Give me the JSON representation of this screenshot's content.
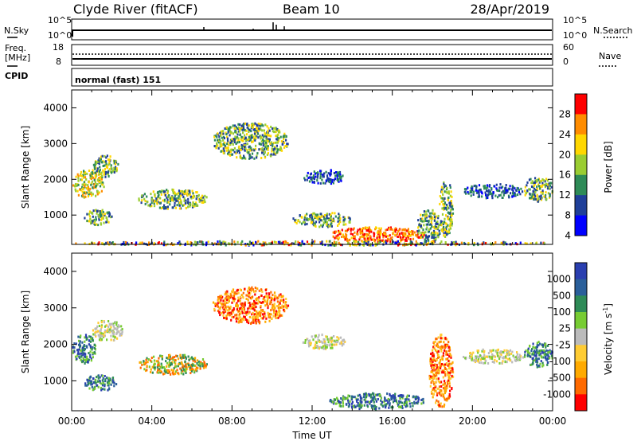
{
  "header": {
    "station": "Clyde River (fitACF)",
    "beam": "Beam 10",
    "date": "28/Apr/2019"
  },
  "strips": {
    "nsky_label": "N.Sky",
    "nsky_ticks": [
      "10^5",
      "10^0"
    ],
    "nsearch_label": "N.Search",
    "nsearch_ticks": [
      "10^5",
      "10^0"
    ],
    "freq_label_1": "Freq.",
    "freq_label_2": "[MHz]",
    "freq_ticks": [
      "18",
      "8"
    ],
    "nave_label": "Nave",
    "nave_ticks": [
      "60",
      "0"
    ],
    "cpid_label": "CPID",
    "cpid_text": "normal (fast) 151"
  },
  "chart_data": [
    {
      "type": "heatmap",
      "name": "power",
      "ylabel": "Slant Range [km]",
      "ylim": [
        180,
        4500
      ],
      "yticks": [
        "4000",
        "3000",
        "2000",
        "1000"
      ],
      "xlim": [
        "00:00",
        "24:00"
      ],
      "colorbar": {
        "label": "Power [dB]",
        "ticks": [
          "28",
          "24",
          "20",
          "16",
          "12",
          "8",
          "4"
        ],
        "colors": [
          "#ff0000",
          "#ff8c00",
          "#ffd700",
          "#9acd32",
          "#2e8b57",
          "#1f3f99",
          "#0000ff"
        ]
      },
      "features": [
        {
          "t0": 0.0,
          "t1": 1.6,
          "r0": 1500,
          "r1": 2300,
          "level": "12-24 dB"
        },
        {
          "t0": 0.6,
          "t1": 2.0,
          "r0": 750,
          "r1": 1200,
          "level": "12-20 dB"
        },
        {
          "t0": 1.0,
          "t1": 2.3,
          "r0": 2100,
          "r1": 2700,
          "level": "8-16 dB"
        },
        {
          "t0": 3.3,
          "t1": 6.8,
          "r0": 1200,
          "r1": 1750,
          "level": "12-20 dB"
        },
        {
          "t0": 7.0,
          "t1": 10.8,
          "r0": 2600,
          "r1": 3600,
          "level": "8-16 dB"
        },
        {
          "t0": 11.5,
          "t1": 13.6,
          "r0": 1900,
          "r1": 2300,
          "level": "4-12 dB"
        },
        {
          "t0": 11.0,
          "t1": 14.0,
          "r0": 700,
          "r1": 1100,
          "level": "8-16 dB"
        },
        {
          "t0": 12.8,
          "t1": 17.6,
          "r0": 250,
          "r1": 700,
          "level": "20-28 dB"
        },
        {
          "t0": 17.2,
          "t1": 18.4,
          "r0": 250,
          "r1": 1200,
          "level": "8-20 dB"
        },
        {
          "t0": 18.3,
          "t1": 19.0,
          "r0": 400,
          "r1": 2000,
          "level": "8-20 dB"
        },
        {
          "t0": 19.5,
          "t1": 22.5,
          "r0": 1500,
          "r1": 1900,
          "level": "4-12 dB"
        },
        {
          "t0": 22.5,
          "t1": 24.0,
          "r0": 1400,
          "r1": 2100,
          "level": "8-20 dB"
        },
        {
          "t0": 0.0,
          "t1": 24.0,
          "r0": 180,
          "r1": 300,
          "level": "ground scatter noise"
        }
      ]
    },
    {
      "type": "heatmap",
      "name": "velocity",
      "ylabel": "Slant Range [km]",
      "ylim": [
        180,
        4500
      ],
      "yticks": [
        "4000",
        "3000",
        "2000",
        "1000"
      ],
      "xlabel": "Time UT",
      "xticks": [
        "00:00",
        "04:00",
        "08:00",
        "12:00",
        "16:00",
        "20:00",
        "00:00"
      ],
      "colorbar": {
        "label": "Velocity [m s^-1]",
        "ticks": [
          "1000",
          "500",
          "100",
          "25",
          "-25",
          "-100",
          "-500",
          "-1000"
        ],
        "colors": [
          "#2a3fb0",
          "#2a5f9a",
          "#2e8b57",
          "#77cc33",
          "#bbbbbb",
          "#ffcc33",
          "#ffaa00",
          "#ff6a00",
          "#ff0000"
        ]
      },
      "features": [
        {
          "t0": 0.0,
          "t1": 1.2,
          "r0": 1500,
          "r1": 2300,
          "sign": "+"
        },
        {
          "t0": 0.6,
          "t1": 2.2,
          "r0": 750,
          "r1": 1200,
          "sign": "+"
        },
        {
          "t0": 1.0,
          "t1": 2.5,
          "r0": 2100,
          "r1": 2700,
          "sign": "~0"
        },
        {
          "t0": 3.3,
          "t1": 6.8,
          "r0": 1200,
          "r1": 1750,
          "sign": "+/-"
        },
        {
          "t0": 7.0,
          "t1": 10.8,
          "r0": 2600,
          "r1": 3600,
          "sign": "-"
        },
        {
          "t0": 11.5,
          "t1": 13.6,
          "r0": 1900,
          "r1": 2300,
          "sign": "~0"
        },
        {
          "t0": 12.8,
          "t1": 17.6,
          "r0": 250,
          "r1": 700,
          "sign": "+"
        },
        {
          "t0": 17.8,
          "t1": 19.0,
          "r0": 300,
          "r1": 2300,
          "sign": "-"
        },
        {
          "t0": 19.5,
          "t1": 22.5,
          "r0": 1500,
          "r1": 1900,
          "sign": "~0"
        },
        {
          "t0": 22.5,
          "t1": 24.0,
          "r0": 1400,
          "r1": 2100,
          "sign": "+"
        }
      ]
    }
  ]
}
